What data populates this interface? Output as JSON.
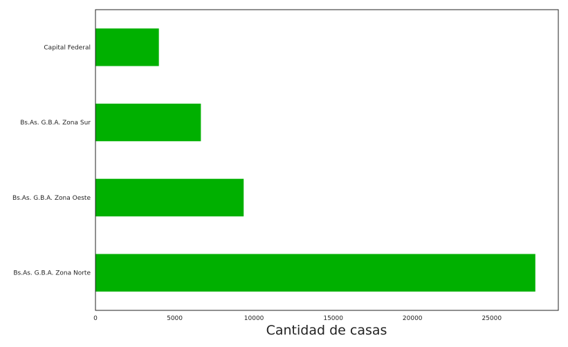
{
  "chart_data": {
    "type": "bar",
    "orientation": "horizontal",
    "title": "",
    "xlabel": "Cantidad de casas",
    "ylabel": "",
    "categories": [
      "Capital Federal",
      "Bs.As. G.B.A. Zona Sur",
      "Bs.As. G.B.A. Zona Oeste",
      "Bs.As. G.B.A. Zona Norte"
    ],
    "values": [
      4000,
      6650,
      9350,
      27750
    ],
    "xlim": [
      0,
      29200
    ],
    "xticks": [
      0,
      5000,
      10000,
      15000,
      20000,
      25000
    ],
    "bar_color": "#00b000",
    "grid": false,
    "legend": "none"
  }
}
